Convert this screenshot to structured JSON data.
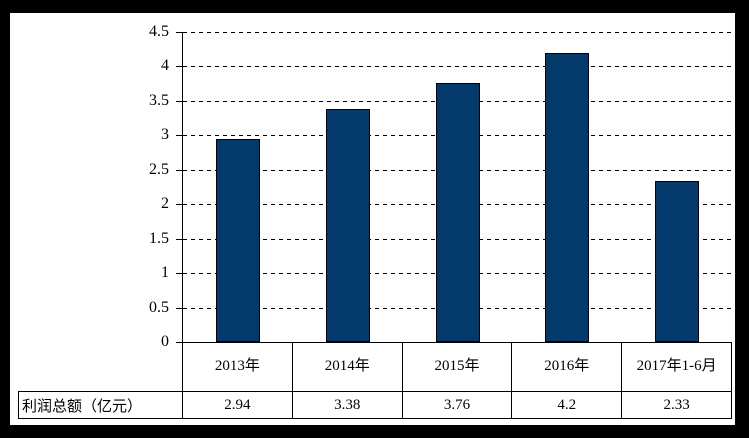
{
  "chart_data": {
    "type": "bar",
    "title": "",
    "xlabel": "",
    "ylabel": "",
    "categories": [
      "2013年",
      "2014年",
      "2015年",
      "2016年",
      "2017年1-6月"
    ],
    "values": [
      2.94,
      3.38,
      3.76,
      4.2,
      2.33
    ],
    "display_values": [
      "2.94",
      "3.38",
      "3.76",
      "4.2",
      "2.33"
    ],
    "series_label": "利润总额（亿元）",
    "ylim": [
      0,
      4.5
    ],
    "ytick_step": 0.5,
    "yticks": [
      "4.5",
      "4",
      "3.5",
      "3",
      "2.5",
      "2",
      "1.5",
      "1",
      "0.5",
      "0"
    ],
    "grid": "horizontal-dashed",
    "legend": "none",
    "bar_color": "#04396B",
    "bar_border_color": "#000000",
    "axis_color": "#000000",
    "text_color": "#000000",
    "frame_color": "#000000",
    "background_color": "#ffffff"
  }
}
